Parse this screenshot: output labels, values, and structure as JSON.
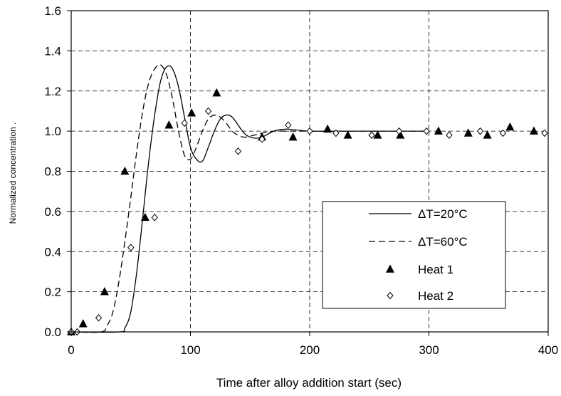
{
  "chart_data": {
    "type": "line",
    "title": "",
    "xlabel": "Time after alloy addition start (sec)",
    "ylabel": "Normalized concentration .",
    "xlim": [
      0,
      400
    ],
    "ylim": [
      0,
      1.6
    ],
    "x_ticks": [
      0,
      100,
      200,
      300,
      400
    ],
    "y_ticks": [
      0.0,
      0.2,
      0.4,
      0.6,
      0.8,
      1.0,
      1.2,
      1.4,
      1.6
    ],
    "x_tick_labels": [
      "0",
      "100",
      "200",
      "300",
      "400"
    ],
    "y_tick_labels": [
      "0.0",
      "0.2",
      "0.4",
      "0.6",
      "0.8",
      "1.0",
      "1.2",
      "1.4",
      "1.6"
    ],
    "grid": "dashed",
    "legend_position": "lower-right",
    "series": [
      {
        "name": "ΔT=20°C",
        "style": "solid",
        "marker": "none",
        "x": [
          0,
          40,
          45,
          50,
          55,
          60,
          65,
          70,
          75,
          80,
          85,
          90,
          95,
          100,
          105,
          110,
          115,
          120,
          125,
          130,
          135,
          140,
          145,
          150,
          155,
          160,
          170,
          180,
          190,
          200,
          220,
          250,
          300
        ],
        "y": [
          0.0,
          0.0,
          0.02,
          0.1,
          0.3,
          0.57,
          0.85,
          1.08,
          1.25,
          1.32,
          1.31,
          1.22,
          1.07,
          0.92,
          0.86,
          0.85,
          0.92,
          1.0,
          1.06,
          1.08,
          1.07,
          1.03,
          0.99,
          0.97,
          0.965,
          0.97,
          1.0,
          1.01,
          1.005,
          1.0,
          1.0,
          1.0,
          1.0
        ]
      },
      {
        "name": "ΔT=60°C",
        "style": "dashed",
        "marker": "none",
        "x": [
          0,
          25,
          30,
          35,
          40,
          45,
          50,
          55,
          60,
          65,
          70,
          75,
          80,
          85,
          90,
          95,
          100,
          105,
          110,
          115,
          120,
          125,
          130,
          135,
          140,
          145,
          150,
          160,
          170,
          180,
          190,
          200,
          250,
          300
        ],
        "y": [
          0.0,
          0.0,
          0.03,
          0.1,
          0.25,
          0.45,
          0.67,
          0.9,
          1.1,
          1.24,
          1.31,
          1.33,
          1.28,
          1.16,
          1.0,
          0.88,
          0.86,
          0.92,
          1.0,
          1.06,
          1.08,
          1.07,
          1.04,
          1.0,
          0.98,
          0.97,
          0.975,
          0.99,
          1.0,
          1.0,
          1.0,
          1.0,
          1.0,
          1.0
        ]
      },
      {
        "name": "Heat 1",
        "style": "none",
        "marker": "filled-triangle",
        "x": [
          0,
          10,
          28,
          45,
          62,
          82,
          101,
          122,
          160,
          186,
          215,
          232,
          257,
          276,
          308,
          333,
          349,
          368,
          388
        ],
        "y": [
          0.0,
          0.04,
          0.2,
          0.8,
          0.57,
          1.03,
          1.09,
          1.19,
          0.97,
          0.97,
          1.01,
          0.98,
          0.98,
          0.98,
          1.0,
          0.99,
          0.98,
          1.02,
          1.0
        ]
      },
      {
        "name": "Heat 2",
        "style": "none",
        "marker": "open-diamond",
        "x": [
          0,
          5,
          23,
          50,
          70,
          95,
          115,
          140,
          160,
          182,
          200,
          222,
          252,
          275,
          298,
          317,
          343,
          362,
          397
        ],
        "y": [
          0.0,
          0.0,
          0.07,
          0.42,
          0.57,
          1.04,
          1.1,
          0.9,
          0.96,
          1.03,
          1.0,
          0.99,
          0.98,
          1.0,
          1.0,
          0.98,
          1.0,
          0.99,
          0.99
        ]
      }
    ]
  }
}
